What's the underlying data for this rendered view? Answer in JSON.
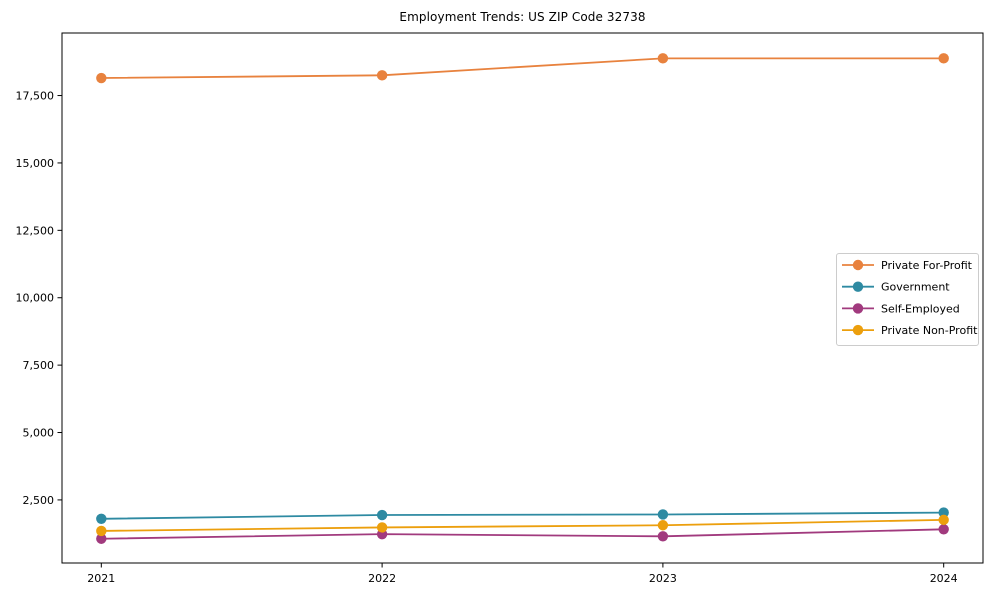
{
  "chart_data": {
    "type": "line",
    "title": "Employment Trends: US ZIP Code 32738",
    "x": [
      2021,
      2022,
      2023,
      2024
    ],
    "x_tick_labels": [
      "2021",
      "2022",
      "2023",
      "2024"
    ],
    "series": [
      {
        "name": "Private For-Profit",
        "color": "#e8823e",
        "values": [
          18150,
          18250,
          18880,
          18880
        ]
      },
      {
        "name": "Government",
        "color": "#2e8aa2",
        "values": [
          1800,
          1940,
          1960,
          2030
        ]
      },
      {
        "name": "Self-Employed",
        "color": "#a13a7e",
        "values": [
          1060,
          1230,
          1150,
          1410
        ]
      },
      {
        "name": "Private Non-Profit",
        "color": "#ec9f0d",
        "values": [
          1350,
          1480,
          1560,
          1760
        ]
      }
    ],
    "xlim": [
      2020.86,
      2024.14
    ],
    "ylim": [
      160,
      19820
    ],
    "y_ticks": [
      2500,
      5000,
      7500,
      10000,
      12500,
      15000,
      17500
    ],
    "y_tick_labels": [
      "2,500",
      "5,000",
      "7,500",
      "10,000",
      "12,500",
      "15,000",
      "17,500"
    ],
    "xlabel": "",
    "ylabel": "",
    "grid": false,
    "legend_position": "center right",
    "frame_color": "#000000",
    "tick_label_color": "#000000",
    "legend_border_color": "#cccccc",
    "legend_background": "#ffffff"
  }
}
